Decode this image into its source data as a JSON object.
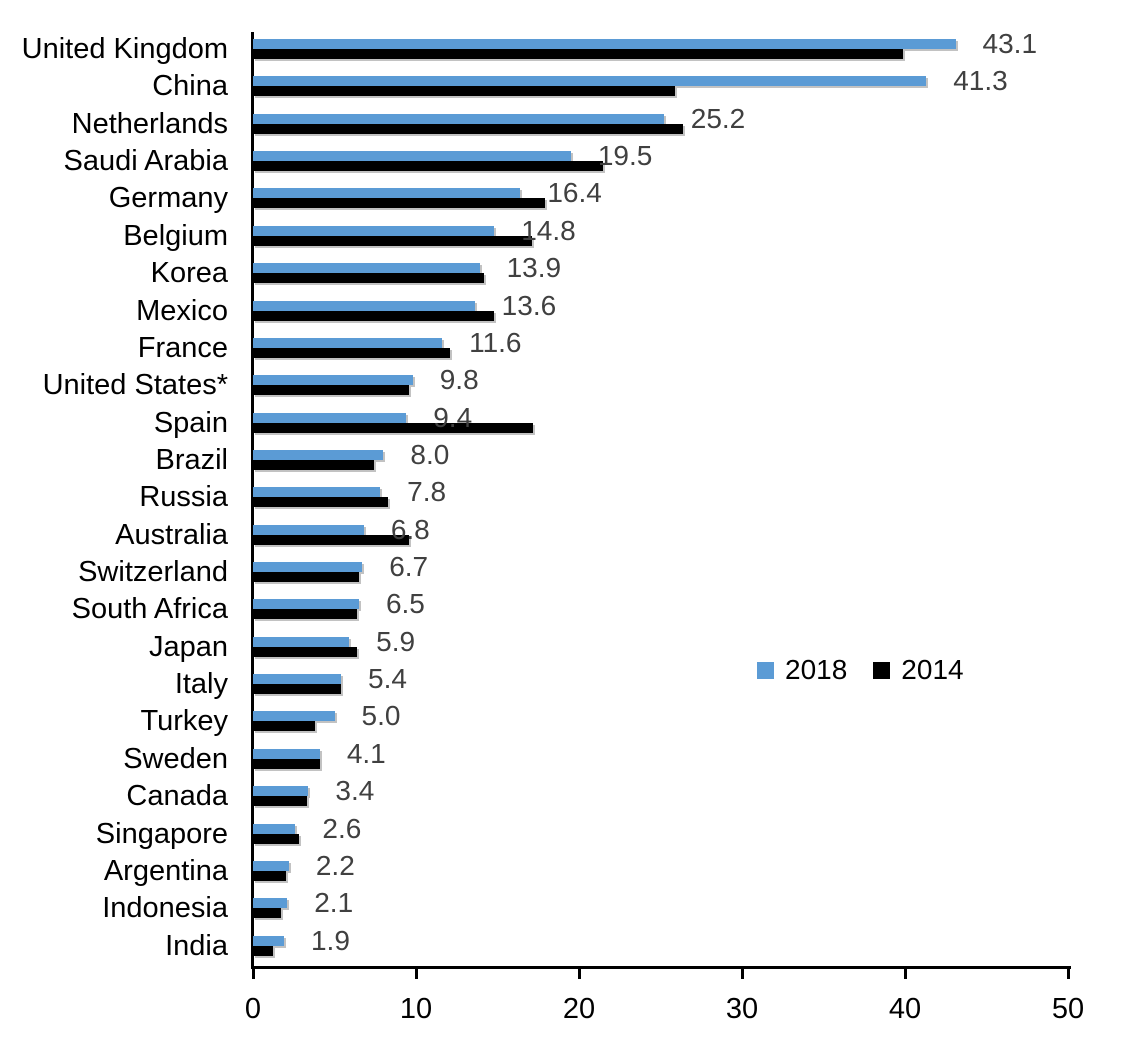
{
  "chart_data": {
    "type": "bar",
    "orientation": "horizontal",
    "title": "",
    "xlabel": "",
    "ylabel": "",
    "xlim": [
      0,
      50
    ],
    "x_ticks": [
      "0",
      "10",
      "20",
      "30",
      "40",
      "50"
    ],
    "grid": false,
    "legend_position": "middle-right",
    "data_labels_on_series": "2018",
    "categories": [
      "United Kingdom",
      "China",
      "Netherlands",
      "Saudi Arabia",
      "Germany",
      "Belgium",
      "Korea",
      "Mexico",
      "France",
      "United States*",
      "Spain",
      "Brazil",
      "Russia",
      "Australia",
      "Switzerland",
      "South Africa",
      "Japan",
      "Italy",
      "Turkey",
      "Sweden",
      "Canada",
      "Singapore",
      "Argentina",
      "Indonesia",
      "India"
    ],
    "series": [
      {
        "name": "2018",
        "color": "#5B9BD5",
        "values": [
          43.1,
          41.3,
          25.2,
          19.5,
          16.4,
          14.8,
          13.9,
          13.6,
          11.6,
          9.8,
          9.4,
          8.0,
          7.8,
          6.8,
          6.7,
          6.5,
          5.9,
          5.4,
          5.0,
          4.1,
          3.4,
          2.6,
          2.2,
          2.1,
          1.9
        ],
        "data_labels": [
          "43.1",
          "41.3",
          "25.2",
          "19.5",
          "16.4",
          "14.8",
          "13.9",
          "13.6",
          "11.6",
          "9.8",
          "9.4",
          "8.0",
          "7.8",
          "6.8",
          "6.7",
          "6.5",
          "5.9",
          "5.4",
          "5.0",
          "4.1",
          "3.4",
          "2.6",
          "2.2",
          "2.1",
          "1.9"
        ]
      },
      {
        "name": "2014",
        "color": "#000000",
        "values": [
          39.9,
          25.9,
          26.4,
          21.5,
          17.9,
          17.1,
          14.2,
          14.8,
          12.1,
          9.6,
          17.2,
          7.4,
          8.3,
          9.6,
          6.5,
          6.4,
          6.4,
          5.4,
          3.8,
          4.1,
          3.3,
          2.8,
          2.0,
          1.7,
          1.2
        ]
      }
    ]
  },
  "legend": {
    "items": [
      {
        "label": "2018",
        "color": "#5B9BD5"
      },
      {
        "label": "2014",
        "color": "#000000"
      }
    ]
  },
  "colors": {
    "series_2018": "#5B9BD5",
    "series_2014": "#000000",
    "data_label_text": "#404040",
    "axis": "#000000",
    "category_text": "#000000",
    "background": "#FFFFFF"
  }
}
